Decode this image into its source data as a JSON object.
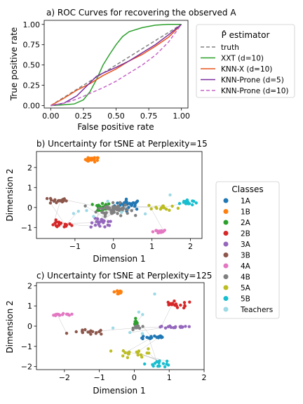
{
  "chart_data": [
    {
      "type": "line",
      "title": "a) ROC Curves for recovering the observed A",
      "xlabel": "False positive rate",
      "ylabel": "True positive rate",
      "xlim": [
        -0.05,
        1.05
      ],
      "ylim": [
        -0.03,
        1.05
      ],
      "xticks": [
        "0.00",
        "0.25",
        "0.50",
        "0.75",
        "1.00"
      ],
      "yticks": [
        "0.00",
        "0.25",
        "0.50",
        "0.75",
        "1.00"
      ],
      "legend_title": "P̂ estimator",
      "legend_position": "outside-right",
      "series": [
        {
          "name": "truth",
          "color": "#808080",
          "dash": true,
          "x": [
            0,
            1
          ],
          "y": [
            0,
            1
          ]
        },
        {
          "name": "XXT (d=10)",
          "color": "#2ca02c",
          "dash": false,
          "x": [
            0,
            0.1,
            0.18,
            0.25,
            0.3,
            0.35,
            0.4,
            0.45,
            0.5,
            0.55,
            0.6,
            0.7,
            0.8,
            0.9,
            1.0
          ],
          "y": [
            0,
            0.01,
            0.02,
            0.07,
            0.17,
            0.32,
            0.5,
            0.63,
            0.75,
            0.85,
            0.91,
            0.96,
            0.99,
            1.0,
            1.0
          ]
        },
        {
          "name": "KNN-X (d=10)",
          "color": "#e8541e",
          "dash": false,
          "x": [
            0,
            0.1,
            0.2,
            0.3,
            0.4,
            0.5,
            0.6,
            0.7,
            0.8,
            0.9,
            1.0
          ],
          "y": [
            0,
            0.09,
            0.19,
            0.27,
            0.37,
            0.45,
            0.55,
            0.63,
            0.73,
            0.84,
            1.0
          ]
        },
        {
          "name": "KNN-Prone (d=5)",
          "color": "#7b2f9e",
          "dash": false,
          "x": [
            0,
            0.1,
            0.2,
            0.3,
            0.35,
            0.4,
            0.5,
            0.6,
            0.7,
            0.8,
            0.9,
            1.0
          ],
          "y": [
            0,
            0.03,
            0.12,
            0.28,
            0.36,
            0.4,
            0.47,
            0.55,
            0.65,
            0.75,
            0.87,
            1.0
          ]
        },
        {
          "name": "KNN-Prone (d=10)",
          "color": "#c766c7",
          "dash": true,
          "x": [
            0,
            0.1,
            0.2,
            0.3,
            0.4,
            0.5,
            0.6,
            0.7,
            0.8,
            0.9,
            1.0
          ],
          "y": [
            0,
            0.03,
            0.08,
            0.15,
            0.22,
            0.3,
            0.4,
            0.5,
            0.62,
            0.78,
            1.0
          ]
        }
      ]
    },
    {
      "type": "scatter",
      "title": "b) Uncertainty for tSNE at Perplexity=15",
      "xlabel": "Dimension 1",
      "ylabel": "Dimension 2",
      "xlim": [
        -2.0,
        2.3
      ],
      "ylim": [
        -1.55,
        2.8
      ],
      "xticks": [
        -1,
        0,
        1,
        2
      ],
      "yticks": [
        -1,
        0,
        1,
        2
      ],
      "clusters": [
        {
          "class": "1A",
          "cx": 0.4,
          "cy": 0.15,
          "sx": 0.3,
          "sy": 0.22,
          "n": 28
        },
        {
          "class": "1B",
          "cx": -0.55,
          "cy": 2.4,
          "sx": 0.15,
          "sy": 0.1,
          "n": 22
        },
        {
          "class": "2A",
          "cx": -0.3,
          "cy": 0.0,
          "sx": 0.2,
          "sy": 0.2,
          "n": 18
        },
        {
          "class": "2B",
          "cx": -1.4,
          "cy": -0.85,
          "sx": 0.25,
          "sy": 0.15,
          "n": 20
        },
        {
          "class": "3A",
          "cx": -0.3,
          "cy": -0.8,
          "sx": 0.25,
          "sy": 0.2,
          "n": 20
        },
        {
          "class": "3B",
          "cx": -1.45,
          "cy": 0.35,
          "sx": 0.2,
          "sy": 0.15,
          "n": 18
        },
        {
          "class": "4A",
          "cx": 1.15,
          "cy": -1.2,
          "sx": 0.2,
          "sy": 0.07,
          "n": 16
        },
        {
          "class": "4B",
          "cx": 0.0,
          "cy": -0.1,
          "sx": 0.35,
          "sy": 0.25,
          "n": 60
        },
        {
          "class": "5A",
          "cx": 1.3,
          "cy": 0.0,
          "sx": 0.35,
          "sy": 0.15,
          "n": 14
        },
        {
          "class": "5B",
          "cx": 1.9,
          "cy": 0.25,
          "sx": 0.15,
          "sy": 0.12,
          "n": 18
        },
        {
          "class": "Teachers",
          "cx": 0.0,
          "cy": 0.0,
          "sx": 1.2,
          "sy": 0.6,
          "n": 8
        }
      ]
    },
    {
      "type": "scatter",
      "title": "c) Uncertainty for tSNE at Perplexity=125",
      "xlabel": "Dimension 1",
      "ylabel": "Dimension 2",
      "xlim": [
        -2.8,
        2.0
      ],
      "ylim": [
        -2.15,
        2.15
      ],
      "xticks": [
        -2,
        -1,
        0,
        1,
        2
      ],
      "yticks": [
        -2,
        -1,
        0,
        1,
        2
      ],
      "clusters": [
        {
          "class": "1A",
          "cx": 0.55,
          "cy": -0.55,
          "sx": 0.35,
          "sy": 0.1,
          "n": 18
        },
        {
          "class": "1B",
          "cx": -0.45,
          "cy": 1.7,
          "sx": 0.1,
          "sy": 0.15,
          "n": 14
        },
        {
          "class": "2A",
          "cx": 0.05,
          "cy": 0.15,
          "sx": 0.05,
          "sy": 0.12,
          "n": 10
        },
        {
          "class": "2B",
          "cx": 1.2,
          "cy": 1.05,
          "sx": 0.4,
          "sy": 0.15,
          "n": 18
        },
        {
          "class": "3A",
          "cx": 1.15,
          "cy": -0.05,
          "sx": 0.45,
          "sy": 0.05,
          "n": 18
        },
        {
          "class": "3B",
          "cx": -1.3,
          "cy": -0.3,
          "sx": 0.4,
          "sy": 0.1,
          "n": 16
        },
        {
          "class": "4A",
          "cx": -2.1,
          "cy": 0.55,
          "sx": 0.35,
          "sy": 0.05,
          "n": 14
        },
        {
          "class": "4B",
          "cx": 0.1,
          "cy": -0.05,
          "sx": 0.1,
          "sy": 0.08,
          "n": 14
        },
        {
          "class": "5A",
          "cx": 0.1,
          "cy": -1.35,
          "sx": 0.45,
          "sy": 0.2,
          "n": 18
        },
        {
          "class": "5B",
          "cx": 0.7,
          "cy": -1.85,
          "sx": 0.3,
          "sy": 0.15,
          "n": 16
        },
        {
          "class": "Teachers",
          "cx": 0.3,
          "cy": 0.3,
          "sx": 0.8,
          "sy": 0.9,
          "n": 6
        }
      ]
    }
  ],
  "classes_legend": {
    "title": "Classes",
    "items": [
      {
        "label": "1A",
        "color": "#1f77b4"
      },
      {
        "label": "1B",
        "color": "#ff7f0e"
      },
      {
        "label": "2A",
        "color": "#2ca02c"
      },
      {
        "label": "2B",
        "color": "#d62728"
      },
      {
        "label": "3A",
        "color": "#9467bd"
      },
      {
        "label": "3B",
        "color": "#8c564b"
      },
      {
        "label": "4A",
        "color": "#e377c2"
      },
      {
        "label": "4B",
        "color": "#7f7f7f"
      },
      {
        "label": "5A",
        "color": "#bcbd22"
      },
      {
        "label": "5B",
        "color": "#17becf"
      },
      {
        "label": "Teachers",
        "color": "#9edae5"
      }
    ]
  }
}
